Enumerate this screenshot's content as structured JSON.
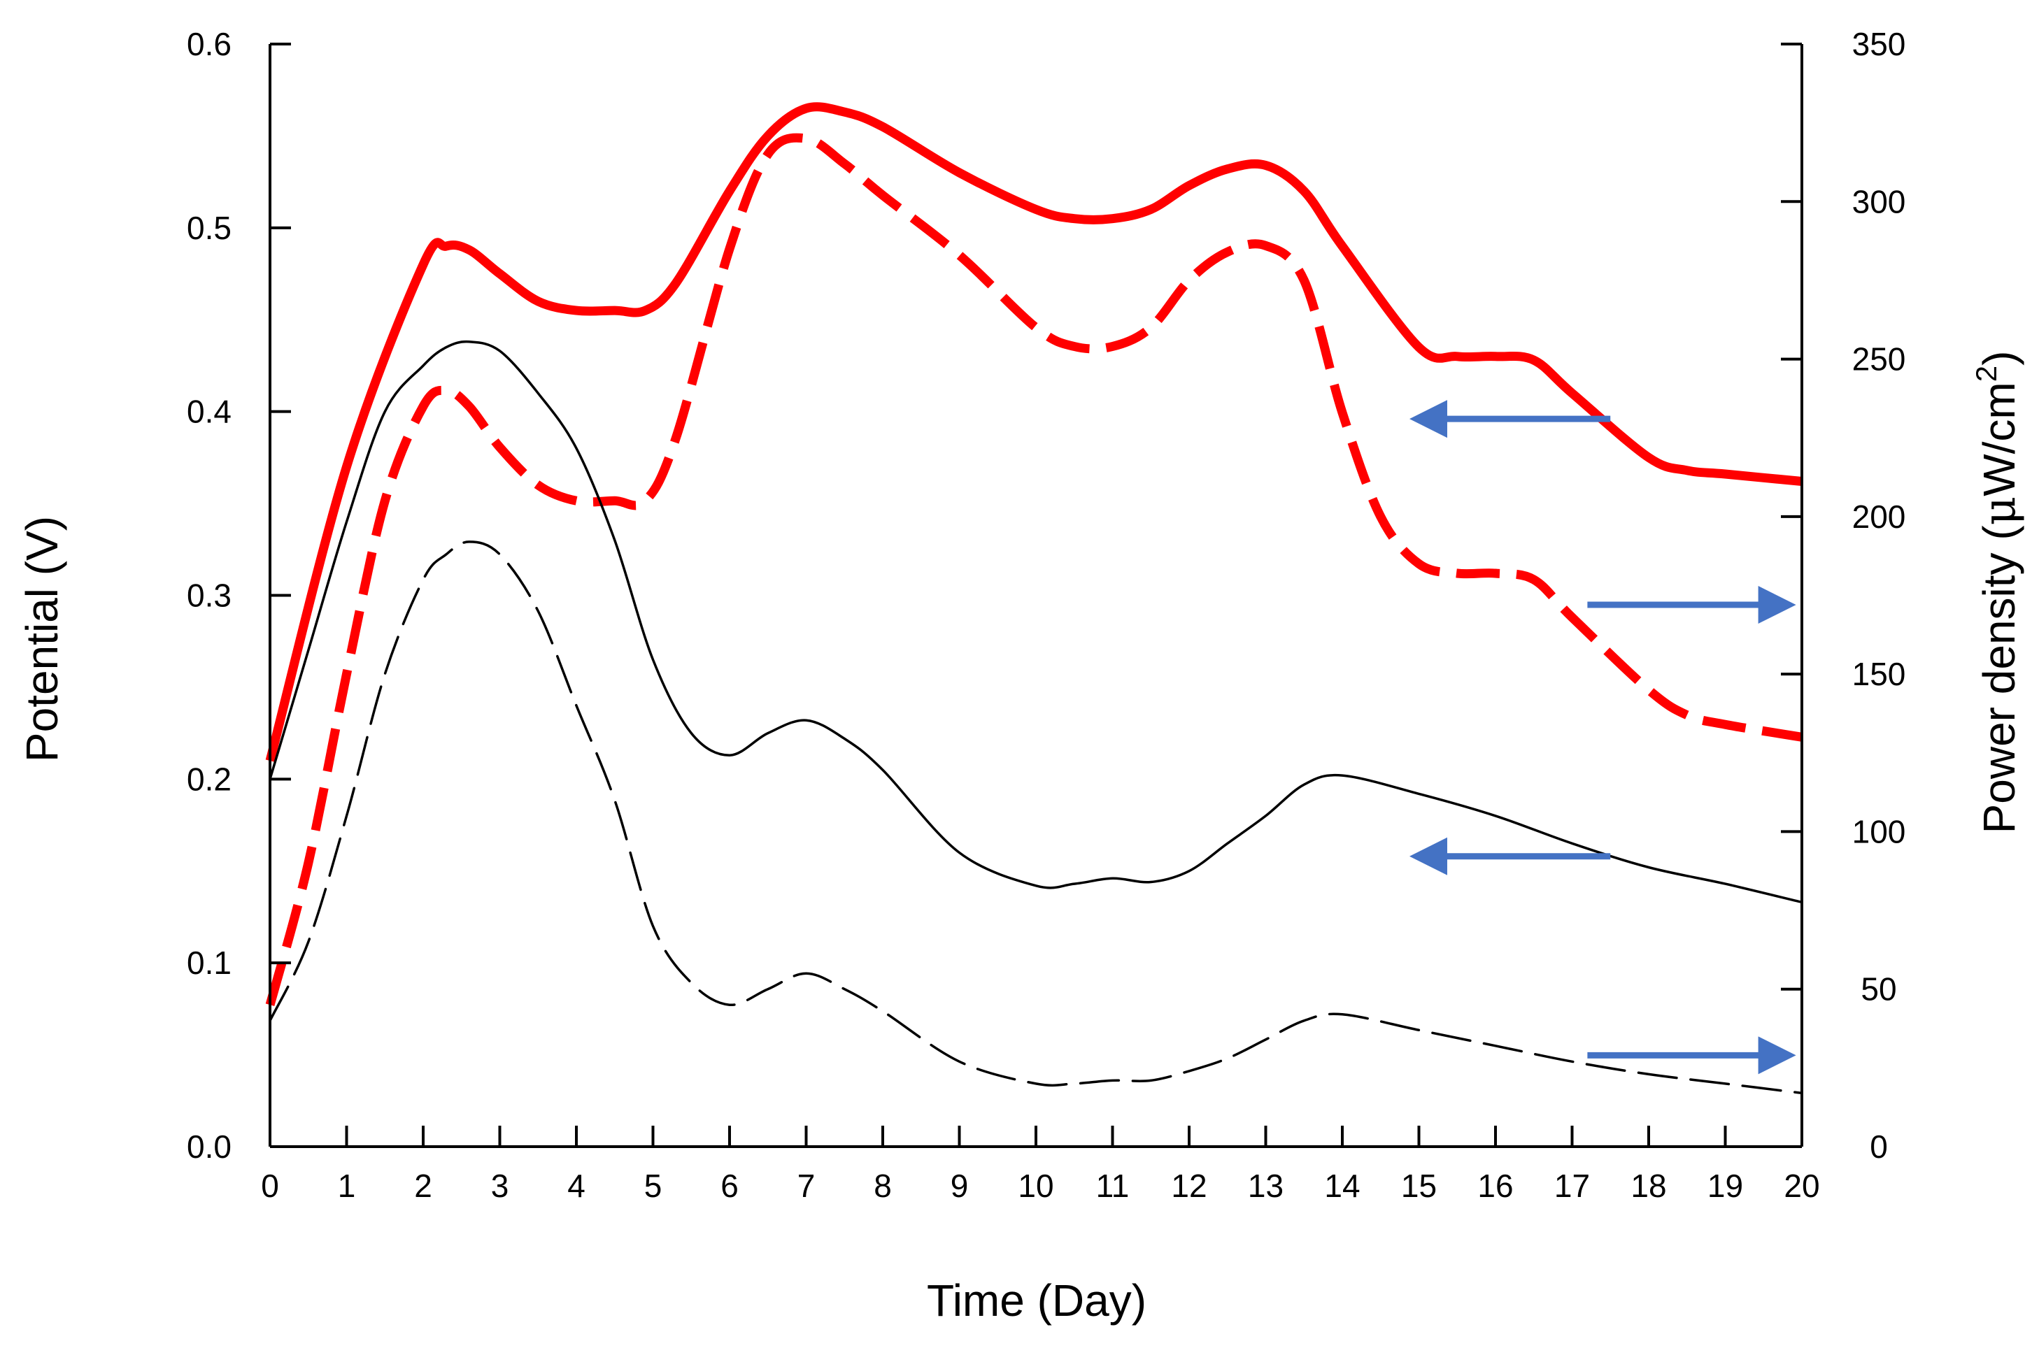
{
  "chart_data": {
    "type": "line",
    "title": "",
    "xlabel": "Time (Day)",
    "ylabel_left": "Potential (V)",
    "ylabel_right": {
      "text": "Power density (",
      "mu": "μ",
      "unit": "W/cm",
      "sup": "2",
      "close": ")"
    },
    "xlim": [
      0,
      20
    ],
    "ylim_left": [
      0,
      0.6
    ],
    "ylim_right": [
      0,
      350
    ],
    "x_ticks": [
      0,
      1,
      2,
      3,
      4,
      5,
      6,
      7,
      8,
      9,
      10,
      11,
      12,
      13,
      14,
      15,
      16,
      17,
      18,
      19,
      20
    ],
    "x_tick_labels": [
      "0",
      "1",
      "2",
      "3",
      "4",
      "5",
      "6",
      "7",
      "8",
      "9",
      "10",
      "11",
      "12",
      "13",
      "14",
      "15",
      "16",
      "17",
      "18",
      "19",
      "20"
    ],
    "y_left_ticks": [
      0,
      0.1,
      0.2,
      0.3,
      0.4,
      0.5,
      0.6
    ],
    "y_left_tick_labels": [
      "0.0",
      "0.1",
      "0.2",
      "0.3",
      "0.4",
      "0.5",
      "0.6"
    ],
    "y_right_ticks": [
      0,
      50,
      100,
      150,
      200,
      250,
      300,
      350
    ],
    "y_right_tick_labels": [
      "0",
      "50",
      "100",
      "150",
      "200",
      "250",
      "300",
      "350"
    ],
    "grid": false,
    "legend": "none",
    "series": [
      {
        "axis": "left",
        "color": "#ff0000",
        "style": "solid",
        "weight": "thick",
        "x": [
          0,
          1,
          2,
          2.3,
          2.6,
          3,
          3.5,
          4,
          4.5,
          4.9,
          5.3,
          6,
          6.5,
          7,
          7.5,
          8,
          9,
          10,
          10.5,
          11,
          11.5,
          12,
          12.5,
          13,
          13.5,
          14,
          15,
          15.5,
          16,
          16.5,
          17,
          18,
          18.5,
          19,
          20
        ],
        "y": [
          0.21,
          0.37,
          0.48,
          0.49,
          0.488,
          0.475,
          0.46,
          0.455,
          0.455,
          0.455,
          0.47,
          0.52,
          0.55,
          0.565,
          0.563,
          0.555,
          0.53,
          0.51,
          0.505,
          0.505,
          0.51,
          0.523,
          0.532,
          0.534,
          0.52,
          0.49,
          0.435,
          0.43,
          0.43,
          0.428,
          0.41,
          0.375,
          0.368,
          0.366,
          0.362
        ]
      },
      {
        "axis": "right",
        "color": "#ff0000",
        "style": "dashed",
        "weight": "thick",
        "x": [
          0,
          0.5,
          1,
          1.5,
          2,
          2.3,
          2.6,
          3,
          3.5,
          4,
          4.5,
          4.9,
          5.3,
          6,
          6.5,
          7,
          7.5,
          8,
          9,
          10,
          10.5,
          11,
          11.5,
          12,
          12.5,
          13,
          13.5,
          14,
          14.5,
          15,
          15.5,
          16,
          16.5,
          17,
          18,
          18.5,
          19,
          20
        ],
        "y": [
          45,
          90,
          150,
          205,
          235,
          240,
          235,
          222,
          210,
          205,
          205,
          205,
          225,
          285,
          315,
          320,
          312,
          302,
          283,
          260,
          254,
          254,
          260,
          275,
          284,
          286,
          275,
          233,
          200,
          185,
          182,
          182,
          180,
          168,
          145,
          137,
          134,
          130
        ]
      },
      {
        "axis": "left",
        "color": "#000000",
        "style": "solid",
        "weight": "thin",
        "x": [
          0,
          0.5,
          1,
          1.5,
          2,
          2.3,
          2.6,
          3,
          3.5,
          4,
          4.5,
          5,
          5.5,
          6,
          6.5,
          7,
          7.5,
          8,
          9,
          10,
          10.5,
          11,
          11.5,
          12,
          12.5,
          13,
          13.5,
          14,
          15,
          16,
          17,
          18,
          19,
          20
        ],
        "y": [
          0.2,
          0.27,
          0.34,
          0.4,
          0.425,
          0.435,
          0.438,
          0.433,
          0.41,
          0.38,
          0.33,
          0.265,
          0.225,
          0.213,
          0.225,
          0.232,
          0.222,
          0.205,
          0.16,
          0.142,
          0.143,
          0.146,
          0.144,
          0.15,
          0.165,
          0.18,
          0.197,
          0.202,
          0.192,
          0.18,
          0.165,
          0.152,
          0.143,
          0.133
        ]
      },
      {
        "axis": "right",
        "color": "#000000",
        "style": "dashed",
        "weight": "thin",
        "x": [
          0,
          0.5,
          1,
          1.5,
          2,
          2.3,
          2.6,
          3,
          3.5,
          4,
          4.5,
          5,
          5.5,
          6,
          6.5,
          7,
          7.5,
          8,
          9,
          10,
          10.5,
          11,
          11.5,
          12,
          12.5,
          13,
          13.5,
          14,
          15,
          16,
          17,
          18,
          19,
          20
        ],
        "y": [
          40,
          65,
          105,
          150,
          180,
          188,
          192,
          188,
          170,
          140,
          110,
          70,
          52,
          45,
          50,
          55,
          50,
          43,
          27,
          20,
          20,
          21,
          21,
          24,
          28,
          34,
          40,
          42,
          37,
          32,
          27,
          23,
          20,
          17
        ]
      }
    ],
    "annotations": [
      {
        "name": "arrow-red-solid-to-left-axis",
        "direction": "left",
        "x_from": 17.5,
        "x_to": 15.0,
        "axis": "left",
        "y": 0.396
      },
      {
        "name": "arrow-red-dashed-to-right-axis",
        "direction": "right",
        "x_from": 17.2,
        "x_to": 19.8,
        "axis": "right",
        "y": 172
      },
      {
        "name": "arrow-black-solid-to-left-axis",
        "direction": "left",
        "x_from": 17.5,
        "x_to": 15.0,
        "axis": "left",
        "y": 0.158
      },
      {
        "name": "arrow-black-dashed-to-right-axis",
        "direction": "right",
        "x_from": 17.2,
        "x_to": 19.8,
        "axis": "right",
        "y": 29
      }
    ],
    "colors": {
      "red_series": "#ff0000",
      "black_series": "#000000",
      "arrow": "#4472c4"
    }
  }
}
